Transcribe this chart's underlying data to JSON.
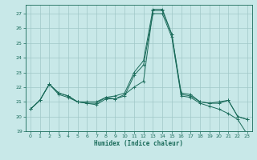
{
  "title": "",
  "xlabel": "Humidex (Indice chaleur)",
  "ylabel": "",
  "xlim": [
    -0.5,
    23.5
  ],
  "ylim": [
    19,
    27.6
  ],
  "yticks": [
    19,
    20,
    21,
    22,
    23,
    24,
    25,
    26,
    27
  ],
  "xticks": [
    0,
    1,
    2,
    3,
    4,
    5,
    6,
    7,
    8,
    9,
    10,
    11,
    12,
    13,
    14,
    15,
    16,
    17,
    18,
    19,
    20,
    21,
    22,
    23
  ],
  "background_color": "#c8e8e8",
  "grid_color": "#a0c8c8",
  "line_color": "#1a6b5a",
  "series1_y": [
    20.5,
    21.1,
    22.2,
    21.6,
    21.4,
    21.0,
    21.0,
    21.0,
    21.3,
    21.4,
    21.6,
    23.0,
    23.8,
    27.3,
    27.3,
    25.6,
    21.6,
    21.5,
    21.0,
    20.9,
    21.0,
    21.1,
    20.0,
    19.8
  ],
  "series2_y": [
    20.5,
    21.1,
    22.2,
    21.5,
    21.3,
    21.0,
    20.9,
    20.9,
    21.3,
    21.2,
    21.5,
    22.0,
    22.4,
    27.2,
    27.2,
    25.6,
    21.5,
    21.4,
    21.0,
    20.9,
    20.9,
    21.1,
    20.0,
    19.8
  ],
  "series3_y": [
    20.5,
    21.1,
    22.2,
    21.6,
    21.4,
    21.0,
    20.9,
    20.8,
    21.2,
    21.2,
    21.4,
    22.8,
    23.5,
    27.0,
    27.0,
    25.4,
    21.4,
    21.3,
    20.9,
    20.7,
    20.5,
    20.2,
    19.8,
    18.8
  ]
}
